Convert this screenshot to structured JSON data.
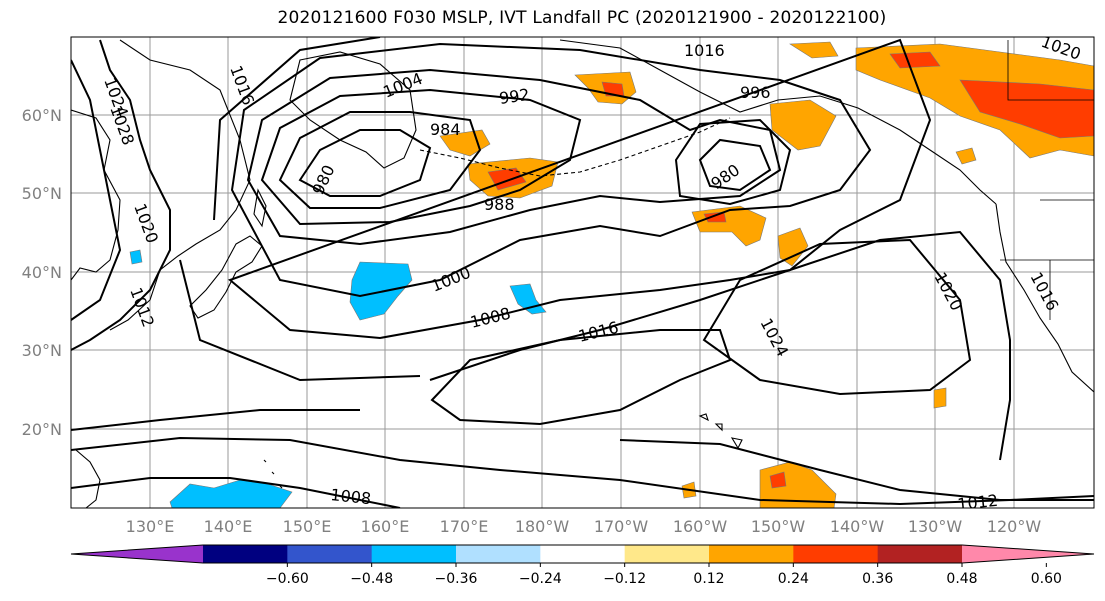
{
  "title": "2020121600 F030 MSLP, IVT Landfall PC (2020121900 - 2020122100)",
  "lat_labels": [
    "60°N",
    "50°N",
    "40°N",
    "30°N",
    "20°N"
  ],
  "lon_labels": [
    "130°E",
    "140°E",
    "150°E",
    "160°E",
    "170°E",
    "180°W",
    "170°W",
    "160°W",
    "150°W",
    "140°W",
    "130°W",
    "120°W"
  ],
  "contour_labels": [
    "1024",
    "1028",
    "1016",
    "1004",
    "992",
    "984",
    "980",
    "988",
    "996",
    "980",
    "1020",
    "1000",
    "1008",
    "1016",
    "1024",
    "1020",
    "1016",
    "1008",
    "1012",
    "1020",
    "1016",
    "1012"
  ],
  "colorbar": {
    "colors": [
      "#9933cc",
      "#000080",
      "#3355cc",
      "#00bfff",
      "#b0e0ff",
      "#ffffff",
      "#ffe88a",
      "#ffa500",
      "#ff3d00",
      "#b22222",
      "#ff88aa"
    ],
    "ticks": [
      "−0.60",
      "−0.48",
      "−0.36",
      "−0.24",
      "−0.12",
      "0.12",
      "0.24",
      "0.36",
      "0.48",
      "0.60"
    ]
  }
}
